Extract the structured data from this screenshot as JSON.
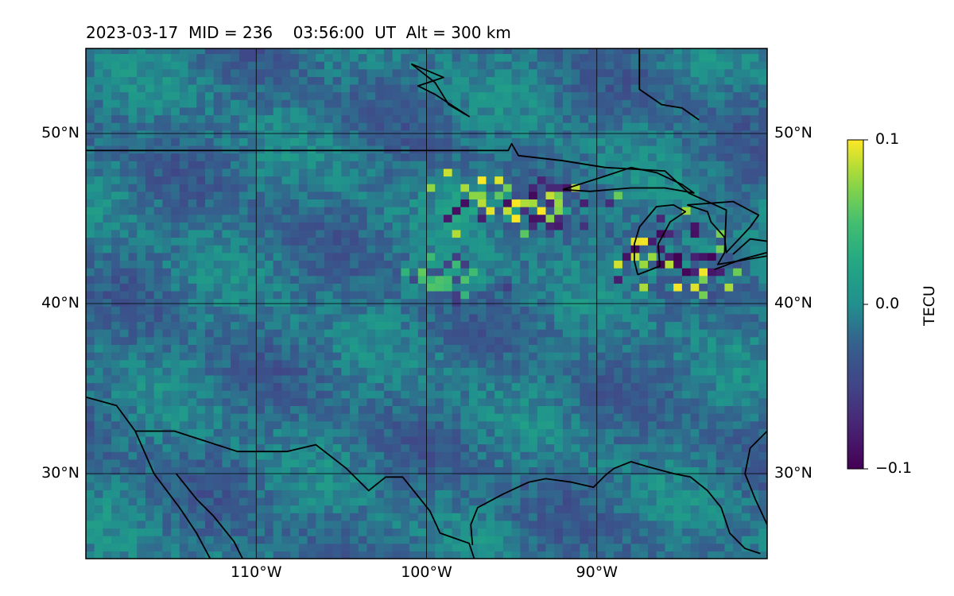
{
  "title": "2023-03-17  MID = 236    03:56:00  UT  Alt = 300 km",
  "chart_data": {
    "type": "heatmap",
    "map": true,
    "projection": "PlateCarree",
    "xlim": [
      -120,
      -80
    ],
    "ylim": [
      25,
      55
    ],
    "x_ticks": [
      {
        "value": -110,
        "label": "110°W"
      },
      {
        "value": -100,
        "label": "100°W"
      },
      {
        "value": -90,
        "label": "90°W"
      }
    ],
    "y_ticks": [
      {
        "value": 30,
        "label": "30°N"
      },
      {
        "value": 40,
        "label": "40°N"
      },
      {
        "value": 50,
        "label": "50°N"
      }
    ],
    "grid": true,
    "colormap": "viridis",
    "colorbar": {
      "label": "TECU",
      "vmin": -0.1,
      "vmax": 0.1,
      "ticks": [
        {
          "value": 0.1,
          "label": "0.1"
        },
        {
          "value": 0.0,
          "label": "0.0"
        },
        {
          "value": -0.1,
          "label": "−0.1"
        }
      ]
    },
    "background_value": -0.015,
    "anomaly_clusters": [
      {
        "lon": -96.5,
        "lat": 45.7,
        "spread_lon": 3.2,
        "spread_lat": 1.2,
        "amplitude": 0.1
      },
      {
        "lon": -92.5,
        "lat": 45.2,
        "spread_lon": 2.5,
        "spread_lat": 1.4,
        "amplitude": 0.09
      },
      {
        "lon": -85.0,
        "lat": 42.3,
        "spread_lon": 3.0,
        "spread_lat": 1.8,
        "amplitude": 0.1
      },
      {
        "lon": -99.0,
        "lat": 41.5,
        "spread_lon": 2.5,
        "spread_lat": 1.3,
        "amplitude": 0.06
      }
    ],
    "colors": {
      "viridis_low": "#440154",
      "viridis_mid": "#21908d",
      "viridis_high": "#fde725",
      "coastline": "#000000",
      "gridline": "#000000"
    }
  }
}
